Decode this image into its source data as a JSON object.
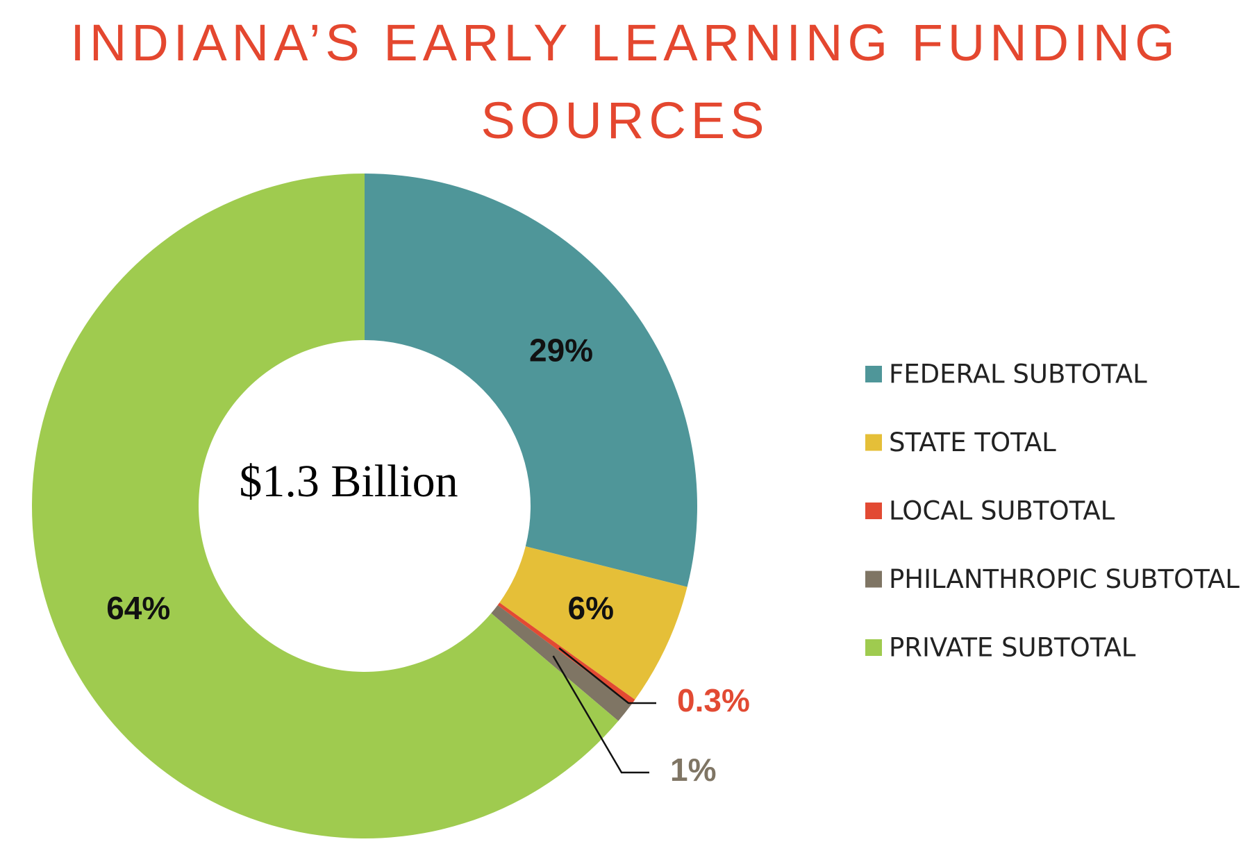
{
  "chart_data": {
    "type": "donut",
    "title": "INDIANA’S EARLY LEARNING FUNDING SOURCES",
    "center_label": "$1.3 Billion",
    "categories": [
      "FEDERAL SUBTOTAL",
      "STATE TOTAL",
      "LOCAL SUBTOTAL",
      "PHILANTHROPIC SUBTOTAL",
      "PRIVATE SUBTOTAL"
    ],
    "values": [
      29,
      6,
      0.3,
      1,
      64
    ],
    "value_labels": [
      "29%",
      "6%",
      "0.3%",
      "1%",
      "64%"
    ],
    "colors": [
      "#4f9699",
      "#e5bf38",
      "#e24a33",
      "#7f7564",
      "#9fcb4f"
    ],
    "legend": "right"
  }
}
